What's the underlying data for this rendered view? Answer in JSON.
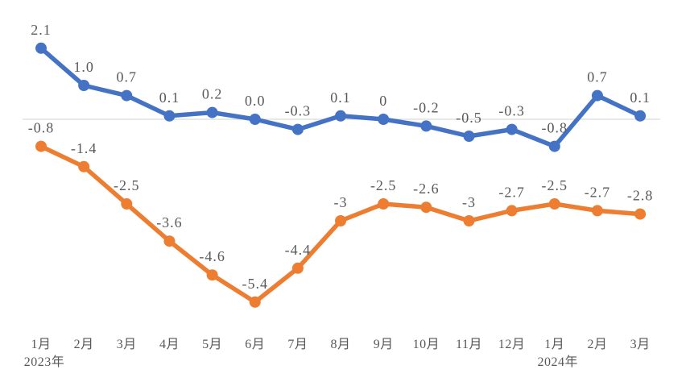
{
  "chart_data": {
    "type": "line",
    "title": "",
    "xlabel": "",
    "ylabel": "",
    "legend": "none",
    "grid": "zero-line-only",
    "ylim": [
      -5.4,
      2.1
    ],
    "categories": [
      "1月",
      "2月",
      "3月",
      "4月",
      "5月",
      "6月",
      "7月",
      "8月",
      "9月",
      "10月",
      "11月",
      "12月",
      "1月",
      "2月",
      "3月"
    ],
    "year_labels": [
      {
        "index": 0,
        "label": "2023年"
      },
      {
        "index": 12,
        "label": "2024年"
      }
    ],
    "series": [
      {
        "name": "blue-series",
        "color": "#4472C4",
        "values": [
          2.1,
          1.0,
          0.7,
          0.1,
          0.2,
          0.0,
          -0.3,
          0.1,
          0,
          -0.2,
          -0.5,
          -0.3,
          -0.8,
          0.7,
          0.1
        ],
        "labels": [
          "2.1",
          "1.0",
          "0.7",
          "0.1",
          "0.2",
          "0.0",
          "-0.3",
          "0.1",
          "0",
          "-0.2",
          "-0.5",
          "-0.3",
          "-0.8",
          "0.7",
          "0.1"
        ]
      },
      {
        "name": "orange-series",
        "color": "#ED7D31",
        "values": [
          -0.8,
          -1.4,
          -2.5,
          -3.6,
          -4.6,
          -5.4,
          -4.4,
          -3,
          -2.5,
          -2.6,
          -3,
          -2.7,
          -2.5,
          -2.7,
          -2.8
        ],
        "labels": [
          "-0.8",
          "-1.4",
          "-2.5",
          "-3.6",
          "-4.6",
          "-5.4",
          "-4.4",
          "-3",
          "-2.5",
          "-2.6",
          "-3",
          "-2.7",
          "-2.5",
          "-2.7",
          "-2.8"
        ]
      }
    ],
    "colors": {
      "data_label": "#595959",
      "axis_label": "#595959",
      "zero_line": "#D9D9D9",
      "background": "#FFFFFF"
    }
  }
}
